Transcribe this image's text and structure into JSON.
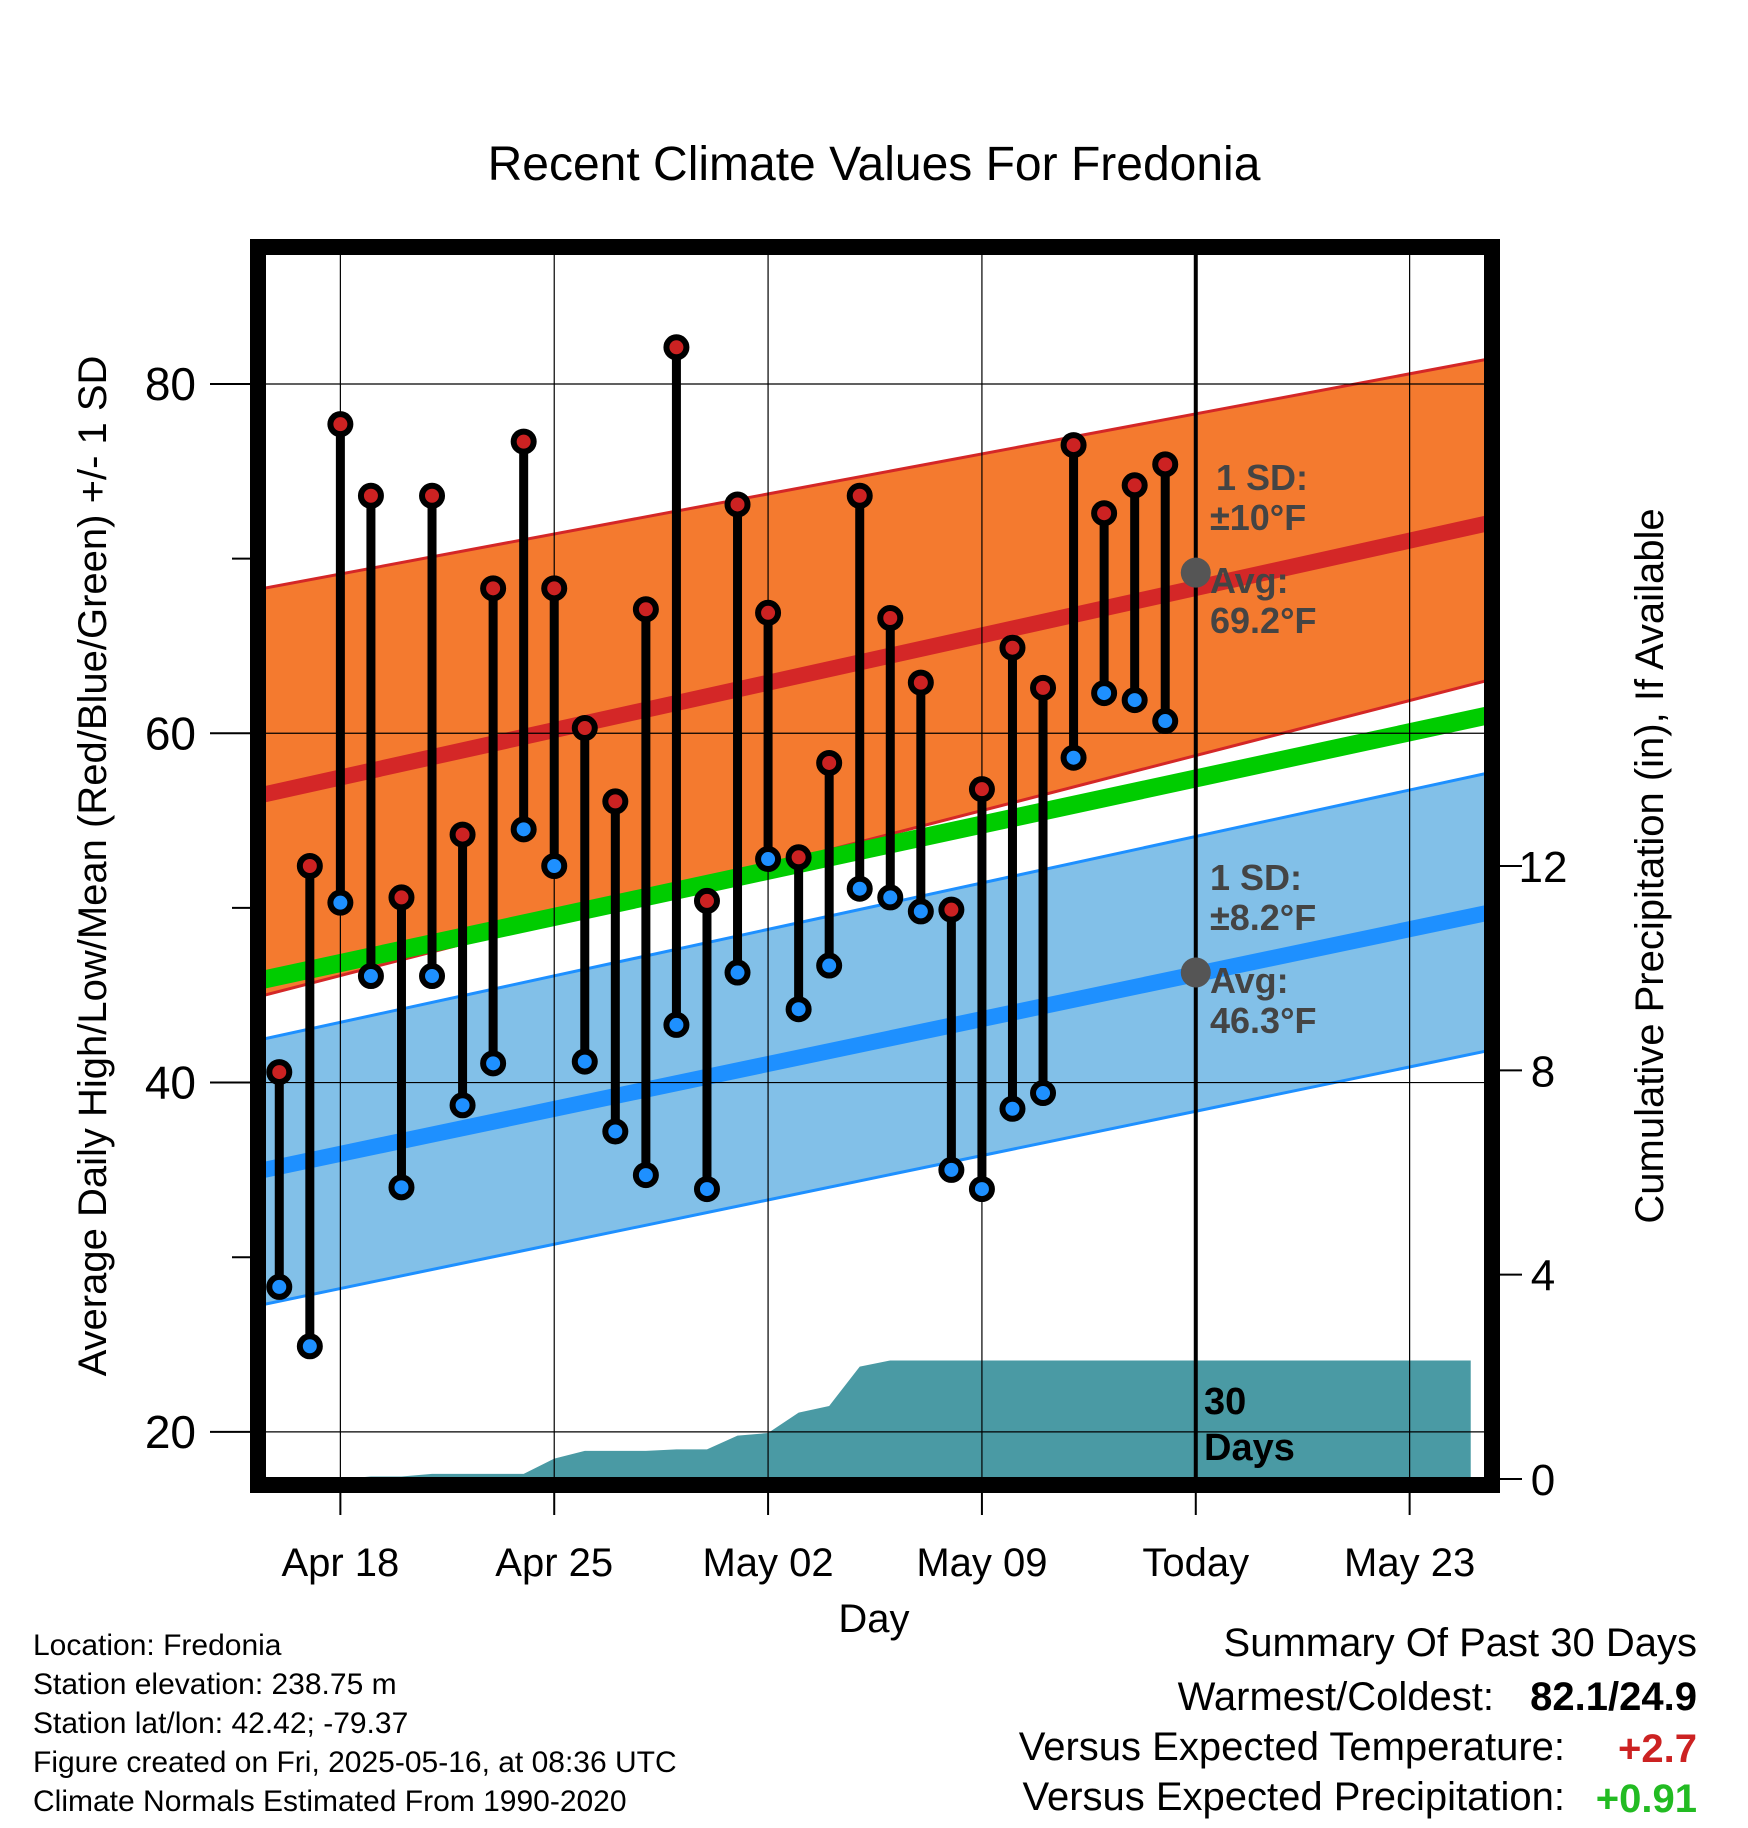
{
  "chart_data": {
    "type": "line",
    "title": "Recent Climate Values For Fredonia",
    "xlabel": "Day",
    "ylabel": "Average Daily High/Low/Mean (Red/Blue/Green) +/- 1 SD",
    "y2label": "Cumulative Precipitation (in), If Available",
    "x_tick_labels": [
      "Apr 18",
      "Apr 25",
      "May 02",
      "May 09",
      "Today",
      "May 23"
    ],
    "x_tick_days": [
      2,
      9,
      16,
      23,
      30,
      37
    ],
    "xlim": [
      -0.5,
      39.5
    ],
    "ylim": [
      17.3,
      87.5
    ],
    "y_ticks": [
      20,
      40,
      60,
      80
    ],
    "y2lim": [
      0,
      24
    ],
    "y2_ticks": [
      0,
      4,
      8,
      12
    ],
    "grid": true,
    "today_day": 30,
    "today_label_line1": "30",
    "today_label_line2": "Days",
    "normal_high": {
      "mean_start": 56.5,
      "mean_end": 72.0,
      "sd_upper_start": 68.3,
      "sd_upper_end": 81.4,
      "sd_lower_start": 45.0,
      "sd_lower_end": 63.0,
      "color": "#f47a2f",
      "line_color": "#d42727",
      "sd_label_line1": "1 SD:",
      "sd_label_line2": "±10°F",
      "avg_label_line1": "Avg:",
      "avg_label_line2": "69.2°F",
      "today_avg": 69.2
    },
    "normal_low": {
      "mean_start": 35.0,
      "mean_end": 49.7,
      "sd_upper_start": 42.5,
      "sd_upper_end": 57.7,
      "sd_lower_start": 27.3,
      "sd_lower_end": 41.8,
      "color": "#82c0e8",
      "line_color": "#1e90ff",
      "sd_label_line1": "1 SD:",
      "sd_label_line2": "±8.2°F",
      "avg_label_line1": "Avg:",
      "avg_label_line2": "46.3°F",
      "today_avg": 46.3
    },
    "normal_mean": {
      "start": 45.9,
      "end": 61.0,
      "color": "#00cc00"
    },
    "series": [
      {
        "name": "High",
        "color": "#cc2222",
        "days": [
          0,
          1,
          2,
          3,
          4,
          5,
          6,
          7,
          8,
          9,
          10,
          11,
          12,
          13,
          14,
          15,
          16,
          17,
          18,
          19,
          20,
          21,
          22,
          23,
          24,
          25,
          26,
          27,
          28,
          29
        ],
        "values": [
          40.6,
          52.4,
          77.7,
          73.6,
          50.6,
          73.6,
          54.2,
          68.3,
          76.7,
          68.3,
          60.3,
          56.1,
          67.1,
          82.1,
          50.4,
          73.1,
          66.9,
          52.9,
          58.3,
          73.6,
          66.6,
          62.9,
          49.9,
          56.8,
          64.9,
          62.6,
          76.5,
          72.6,
          74.2,
          75.4
        ]
      },
      {
        "name": "Low",
        "color": "#1e90ff",
        "days": [
          0,
          1,
          2,
          3,
          4,
          5,
          6,
          7,
          8,
          9,
          10,
          11,
          12,
          13,
          14,
          15,
          16,
          17,
          18,
          19,
          20,
          21,
          22,
          23,
          24,
          25,
          26,
          27,
          28,
          29
        ],
        "values": [
          28.3,
          24.9,
          50.3,
          46.1,
          34.0,
          46.1,
          38.7,
          41.1,
          54.5,
          52.4,
          41.2,
          37.2,
          34.7,
          43.3,
          33.9,
          46.3,
          52.8,
          44.2,
          46.7,
          51.1,
          50.6,
          49.8,
          35.0,
          33.9,
          38.5,
          39.4,
          58.6,
          62.3,
          61.9,
          60.7
        ]
      }
    ],
    "precip": {
      "name": "Cumulative Precipitation",
      "color": "#4a9aa4",
      "days": [
        0,
        1,
        2,
        3,
        4,
        5,
        6,
        7,
        8,
        9,
        10,
        11,
        12,
        13,
        14,
        15,
        16,
        17,
        18,
        19,
        20,
        21,
        22,
        23,
        24,
        25,
        26,
        27,
        28,
        29,
        30,
        31,
        32,
        33,
        34,
        35,
        36,
        37,
        38,
        39
      ],
      "values": [
        0,
        0,
        0,
        0.05,
        0.05,
        0.1,
        0.1,
        0.1,
        0.1,
        0.4,
        0.55,
        0.55,
        0.55,
        0.58,
        0.58,
        0.85,
        0.9,
        1.3,
        1.43,
        2.2,
        2.32,
        2.32,
        2.32,
        2.32,
        2.32,
        2.32,
        2.32,
        2.32,
        2.32,
        2.32,
        2.32,
        2.32,
        2.32,
        2.32,
        2.32,
        2.32,
        2.32,
        2.32,
        2.32,
        2.32
      ]
    }
  },
  "footer": {
    "location": "Location: Fredonia",
    "elevation": "Station elevation: 238.75 m",
    "latlon": "Station lat/lon: 42.42; -79.37",
    "created": "Figure created on Fri, 2025-05-16, at 08:36 UTC",
    "normals": "Climate Normals Estimated From 1990-2020"
  },
  "summary": {
    "title": "Summary Of Past 30 Days",
    "warmest_label": "Warmest/Coldest:",
    "warmest_value": "82.1/24.9",
    "temp_label": "Versus Expected Temperature:",
    "temp_value": "+2.7",
    "temp_color": "#cc2222",
    "precip_label": "Versus Expected Precipitation:",
    "precip_value": "+0.91",
    "precip_color": "#22bb22"
  }
}
